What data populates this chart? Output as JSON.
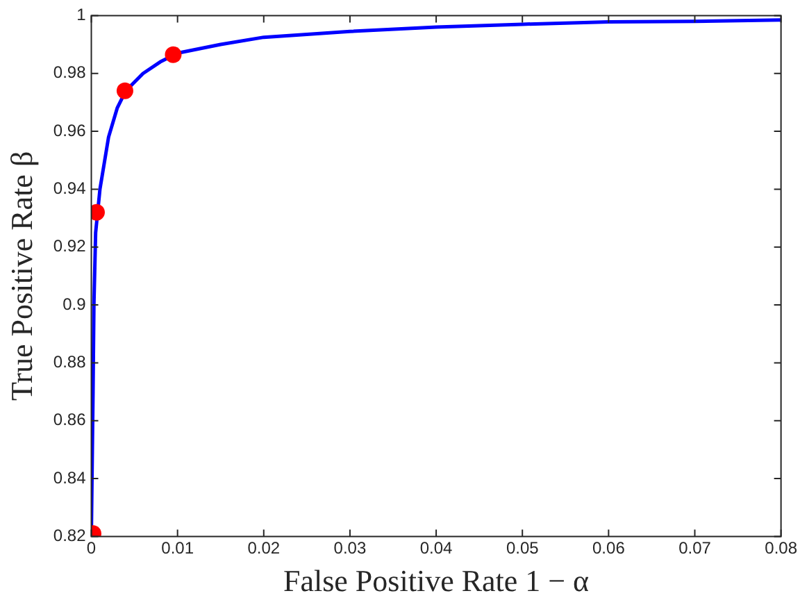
{
  "chart_data": {
    "type": "line",
    "xlabel": "False Positive Rate 1 − α",
    "ylabel": "True Positive Rate β",
    "xlim": [
      0,
      0.08
    ],
    "xticks": [
      0,
      0.01,
      0.02,
      0.03,
      0.04,
      0.05,
      0.06,
      0.07,
      0.08
    ],
    "ylim": [
      0.82,
      1
    ],
    "yticks": [
      0.82,
      0.84,
      0.86,
      0.88,
      0.9,
      0.92,
      0.94,
      0.96,
      0.98,
      1
    ],
    "grid": false,
    "legend": false,
    "series": [
      {
        "color": "#0000ff",
        "marker": "none",
        "x": [
          0,
          0.0002,
          0.0003,
          0.0005,
          0.001,
          0.002,
          0.003,
          0.004,
          0.006,
          0.008,
          0.01,
          0.015,
          0.02,
          0.03,
          0.04,
          0.05,
          0.06,
          0.07,
          0.08
        ],
        "values": [
          0.82,
          0.87,
          0.9,
          0.925,
          0.94,
          0.958,
          0.968,
          0.974,
          0.98,
          0.984,
          0.987,
          0.99,
          0.9925,
          0.9945,
          0.996,
          0.997,
          0.9978,
          0.998,
          0.9985
        ]
      },
      {
        "type": "scatter",
        "color": "#ff0000",
        "marker": "circle",
        "x": [
          0.0002,
          0.0006,
          0.0039,
          0.0095
        ],
        "values": [
          0.821,
          0.932,
          0.974,
          0.9865
        ]
      }
    ]
  }
}
